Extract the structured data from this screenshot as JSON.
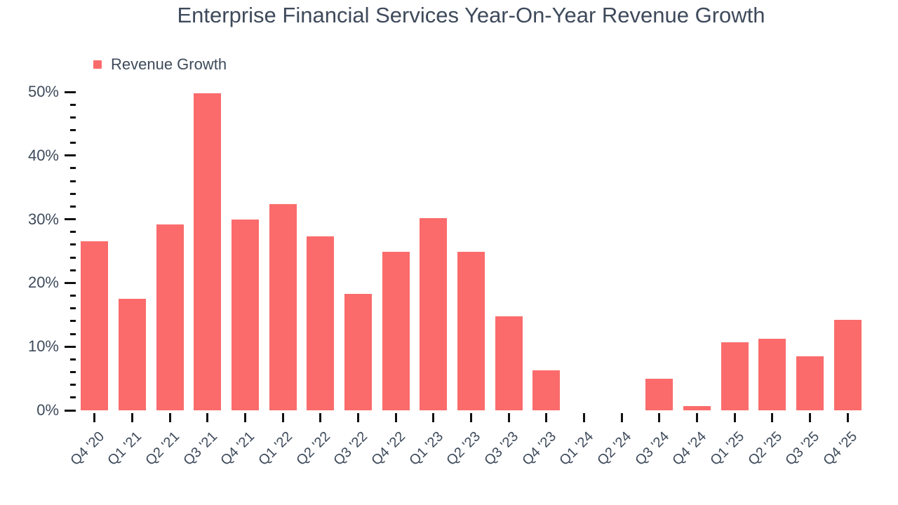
{
  "title": "Enterprise Financial Services Year-On-Year Revenue Growth",
  "legend": {
    "label": "Revenue Growth"
  },
  "colors": {
    "bar": "#FB6B6B",
    "text": "#3E4A5B",
    "tick": "#111111",
    "background": "#FFFFFF"
  },
  "chart_data": {
    "type": "bar",
    "title": "Enterprise Financial Services Year-On-Year Revenue Growth",
    "xlabel": "",
    "ylabel": "",
    "categories": [
      "Q4 '20",
      "Q1 '21",
      "Q2 '21",
      "Q3 '21",
      "Q4 '21",
      "Q1 '22",
      "Q2 '22",
      "Q3 '22",
      "Q4 '22",
      "Q1 '23",
      "Q2 '23",
      "Q3 '23",
      "Q4 '23",
      "Q1 '24",
      "Q2 '24",
      "Q3 '24",
      "Q4 '24",
      "Q1 '25",
      "Q2 '25",
      "Q3 '25",
      "Q4 '25"
    ],
    "series": [
      {
        "name": "Revenue Growth",
        "values": [
          26.5,
          17.5,
          29.2,
          49.8,
          30.0,
          32.4,
          27.3,
          18.3,
          24.9,
          30.2,
          24.9,
          14.8,
          6.3,
          0,
          0,
          5.0,
          0.7,
          10.7,
          11.2,
          8.5,
          14.2
        ]
      }
    ],
    "value_unit": "percent",
    "ylim": [
      0,
      50
    ],
    "yticks": {
      "major_step": 10,
      "minor_step": 2
    },
    "ytick_labels": [
      "0%",
      "10%",
      "20%",
      "30%",
      "40%",
      "50%"
    ],
    "xtick_angle": -45,
    "grid": false,
    "legend_position": "top-left"
  }
}
